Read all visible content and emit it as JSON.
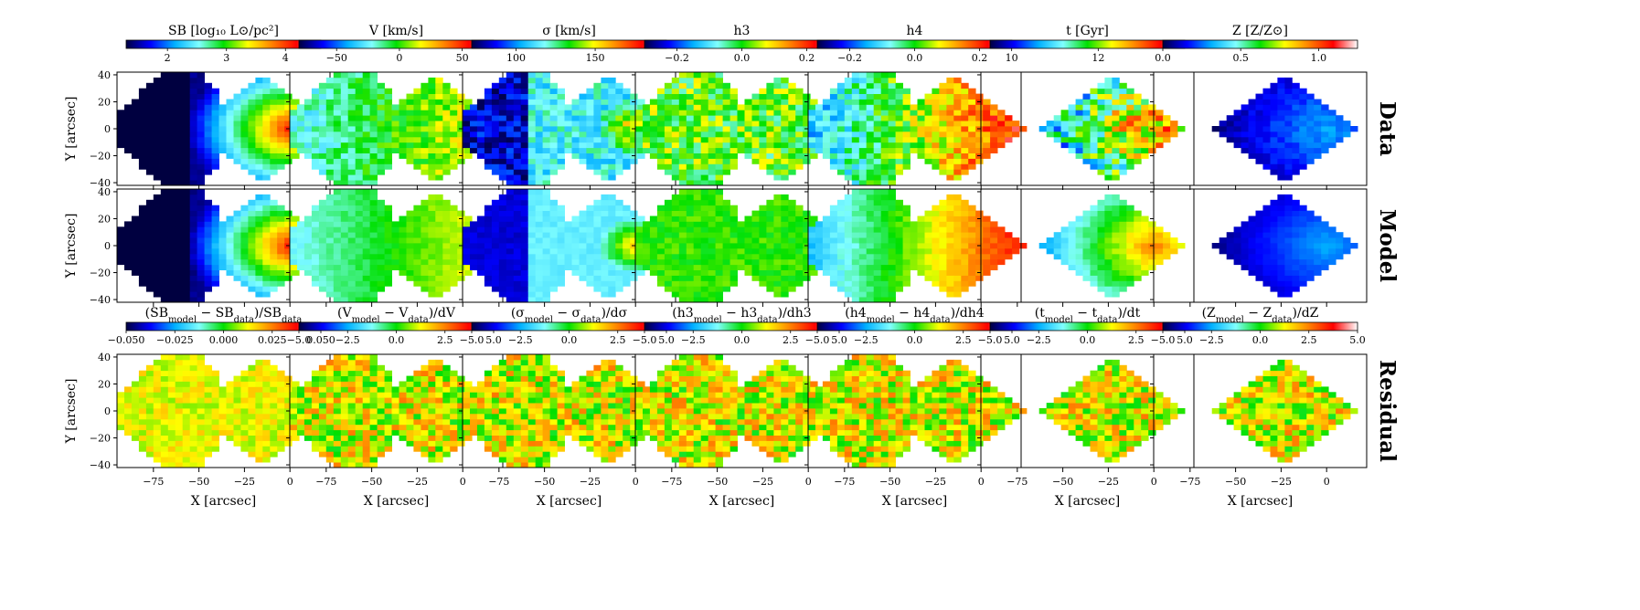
{
  "chart_data": {
    "type": "heatmap",
    "layout": "3 rows x 7 columns of 2D maps",
    "row_labels": [
      "Data",
      "Model",
      "Residual"
    ],
    "xlabel": "X [arcsec]",
    "ylabel": "Y [arcsec]",
    "x_ticks": [
      -75,
      -50,
      -25,
      0
    ],
    "y_ticks": [
      -40,
      -20,
      0,
      20,
      40
    ],
    "xlim": [
      -95,
      22
    ],
    "ylim": [
      -42,
      42
    ],
    "colormap": [
      "#000040",
      "#0000ff",
      "#00b0ff",
      "#80ffff",
      "#00e000",
      "#ffff00",
      "#ff8000",
      "#ff0000",
      "#ffffff"
    ],
    "top_colorbars": [
      {
        "label": "SB [log₁₀ L⊙/pc²]",
        "range": [
          1.3,
          4.6
        ],
        "ticks": [
          2,
          3,
          4
        ],
        "tick_labels": [
          "2",
          "3",
          "4"
        ]
      },
      {
        "label": "V [km/s]",
        "range": [
          -80,
          75
        ],
        "ticks": [
          -50,
          0,
          50
        ],
        "tick_labels": [
          "−50",
          "0",
          "50"
        ]
      },
      {
        "label": "σ [km/s]",
        "range": [
          72,
          195
        ],
        "ticks": [
          100,
          150
        ],
        "tick_labels": [
          "100",
          "150"
        ]
      },
      {
        "label": "h3",
        "range": [
          -0.3,
          0.3
        ],
        "ticks": [
          -0.2,
          0.0,
          0.2
        ],
        "tick_labels": [
          "−0.2",
          "0.0",
          "0.2"
        ]
      },
      {
        "label": "h4",
        "range": [
          -0.3,
          0.3
        ],
        "ticks": [
          -0.2,
          0.0,
          0.2
        ],
        "tick_labels": [
          "−0.2",
          "0.0",
          "0.2"
        ]
      },
      {
        "label": "t [Gyr]",
        "range": [
          9.5,
          14
        ],
        "ticks": [
          10,
          12
        ],
        "tick_labels": [
          "10",
          "12"
        ]
      },
      {
        "label": "Z [Z/Z⊙]",
        "range": [
          0.0,
          1.25
        ],
        "ticks": [
          0.0,
          0.5,
          1.0
        ],
        "tick_labels": [
          "0.0",
          "0.5",
          "1.0"
        ]
      }
    ],
    "residual_colorbars": [
      {
        "label": "(SB_model − SB_data)/SB_data",
        "range": [
          -0.05,
          0.05
        ],
        "ticks": [
          -0.05,
          -0.025,
          0.0,
          0.025,
          0.05
        ],
        "tick_labels": [
          "−0.050",
          "−0.025",
          "0.000",
          "0.025",
          "0.050"
        ]
      },
      {
        "label": "(V_model − V_data)/dV",
        "range": [
          -5,
          5
        ],
        "ticks": [
          -5,
          -2.5,
          0,
          2.5,
          5
        ],
        "tick_labels": [
          "−5.0",
          "−2.5",
          "0.0",
          "2.5",
          "5.0"
        ]
      },
      {
        "label": "(σ_model − σ_data)/dσ",
        "range": [
          -5,
          5
        ],
        "ticks": [
          -5,
          -2.5,
          0,
          2.5,
          5
        ],
        "tick_labels": [
          "−5.0",
          "−2.5",
          "0.0",
          "2.5",
          "5.0"
        ]
      },
      {
        "label": "(h3_model − h3_data)/dh3",
        "range": [
          -5,
          5
        ],
        "ticks": [
          -5,
          -2.5,
          0,
          2.5,
          5
        ],
        "tick_labels": [
          "−5.0",
          "−2.5",
          "0.0",
          "2.5",
          "5.0"
        ]
      },
      {
        "label": "(h4_model − h4_data)/dh4",
        "range": [
          -5,
          5
        ],
        "ticks": [
          -5,
          -2.5,
          0,
          2.5,
          5
        ],
        "tick_labels": [
          "−5.0",
          "−2.5",
          "0.0",
          "2.5",
          "5.0"
        ]
      },
      {
        "label": "(t_model − t_data)/dt",
        "range": [
          -5,
          5
        ],
        "ticks": [
          -5,
          -2.5,
          0,
          2.5,
          5
        ],
        "tick_labels": [
          "−5.0",
          "−2.5",
          "0.0",
          "2.5",
          "5.0"
        ]
      },
      {
        "label": "(Z_model − Z_data)/dZ",
        "range": [
          -5,
          5
        ],
        "ticks": [
          -5,
          -2.5,
          0,
          2.5,
          5
        ],
        "tick_labels": [
          "−5.0",
          "−2.5",
          "0.0",
          "2.5",
          "5.0"
        ]
      }
    ]
  }
}
